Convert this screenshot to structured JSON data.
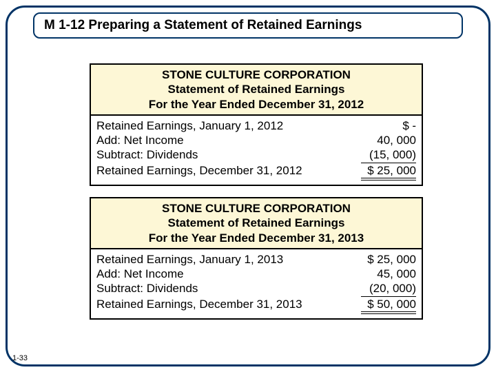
{
  "title": "M 1-12 Preparing a Statement of Retained Earnings",
  "pageNumber": "1-33",
  "colors": {
    "border": "#003366",
    "headerBg": "#fdf7d6"
  },
  "statements": [
    {
      "company": "STONE CULTURE CORPORATION",
      "reportName": "Statement of Retained Earnings",
      "period": "For the Year Ended December 31, 2012",
      "rows": [
        {
          "label": "Retained Earnings, January 1, 2012",
          "dollar": "$",
          "value": "-"
        },
        {
          "label": "Add:  Net Income",
          "dollar": "",
          "value": "40, 000"
        },
        {
          "label": "Subtract:  Dividends",
          "dollar": "",
          "value": "(15, 000)",
          "singleUnderline": true
        },
        {
          "label": "Retained Earnings, December 31, 2012",
          "dollar": "$",
          "value": "25, 000",
          "doubleUnderline": true
        }
      ]
    },
    {
      "company": "STONE CULTURE CORPORATION",
      "reportName": "Statement of Retained Earnings",
      "period": "For the Year Ended December 31, 2013",
      "rows": [
        {
          "label": "Retained Earnings, January 1, 2013",
          "dollar": "$",
          "value": "25, 000"
        },
        {
          "label": "Add:  Net Income",
          "dollar": "",
          "value": "45, 000"
        },
        {
          "label": "Subtract:  Dividends",
          "dollar": "",
          "value": "(20, 000)",
          "singleUnderline": true
        },
        {
          "label": "Retained Earnings, December 31, 2013",
          "dollar": "$",
          "value": "50, 000",
          "doubleUnderline": true
        }
      ]
    }
  ]
}
